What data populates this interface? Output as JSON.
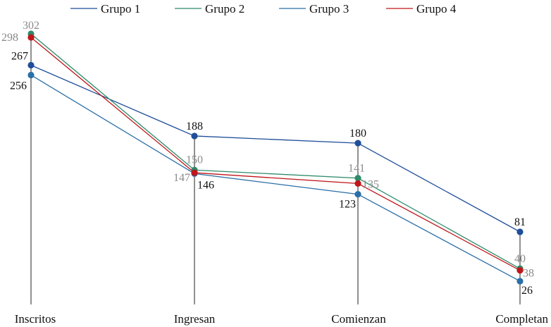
{
  "chart_data": {
    "type": "line",
    "title": "",
    "xlabel": "",
    "ylabel": "",
    "categories": [
      "Inscritos",
      "Ingresan",
      "Comienzan",
      "Completan"
    ],
    "ylim": [
      0,
      302
    ],
    "grid": false,
    "legend_position": "top",
    "series": [
      {
        "name": "Grupo 1",
        "color": "#1f4e9a",
        "values": [
          267,
          188,
          180,
          81
        ],
        "label_color": "#111111"
      },
      {
        "name": "Grupo 2",
        "color": "#2e8b6a",
        "values": [
          302,
          150,
          141,
          40
        ],
        "label_color": "#8a8a8a"
      },
      {
        "name": "Grupo 3",
        "color": "#2a6fa8",
        "values": [
          256,
          146,
          123,
          26
        ],
        "label_color": "#111111"
      },
      {
        "name": "Grupo 4",
        "color": "#c0161b",
        "values": [
          298,
          147,
          135,
          38
        ],
        "label_color": "#8a8a8a"
      }
    ]
  }
}
